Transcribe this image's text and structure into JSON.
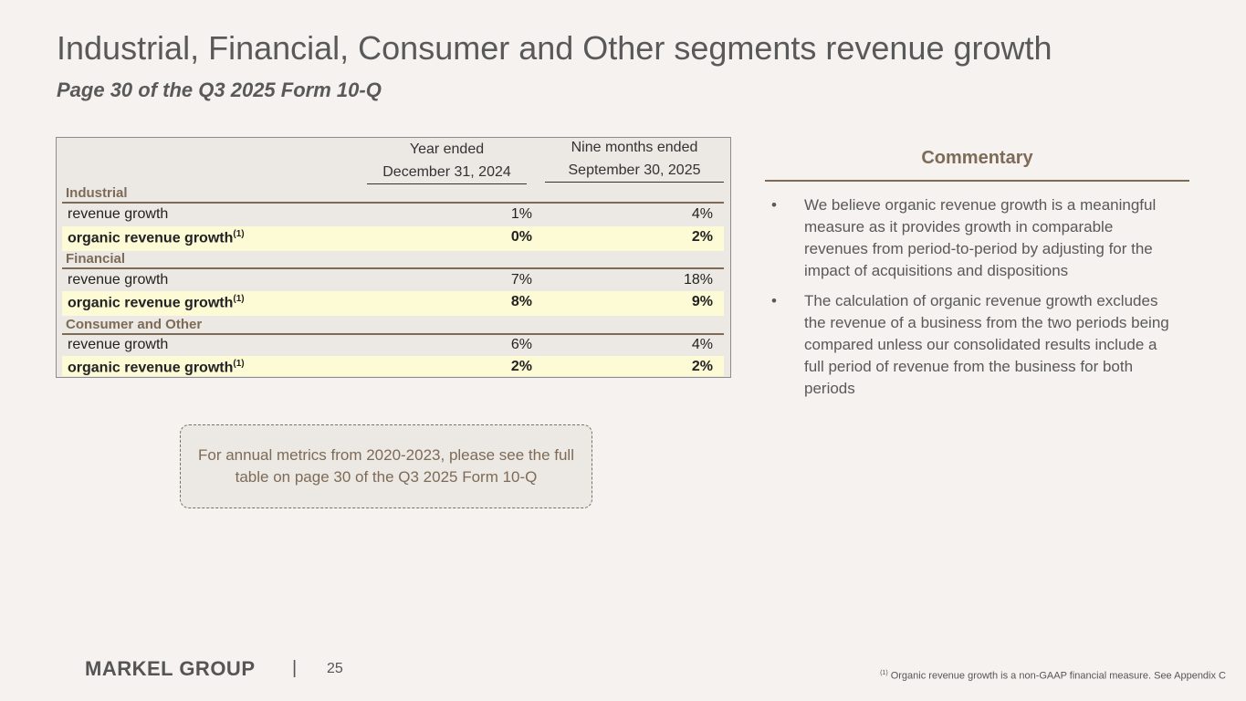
{
  "header": {
    "title": "Industrial, Financial, Consumer and Other segments revenue growth",
    "subtitle": "Page 30 of the Q3 2025 Form 10-Q"
  },
  "table": {
    "col1_line1": "Year ended",
    "col1_line2": "December 31, 2024",
    "col2_line1": "Nine months ended",
    "col2_line2": "September 30, 2025",
    "footnote_marker": "(1)",
    "segments": [
      {
        "name": "Industrial",
        "revenue_label": "revenue growth",
        "revenue_v1": "1%",
        "revenue_v2": "4%",
        "organic_label": "organic revenue growth",
        "organic_v1": "0%",
        "organic_v2": "2%"
      },
      {
        "name": "Financial",
        "revenue_label": "revenue growth",
        "revenue_v1": "7%",
        "revenue_v2": "18%",
        "organic_label": "organic revenue growth",
        "organic_v1": "8%",
        "organic_v2": "9%"
      },
      {
        "name": "Consumer and Other",
        "revenue_label": "revenue growth",
        "revenue_v1": "6%",
        "revenue_v2": "4%",
        "organic_label": "organic revenue growth",
        "organic_v1": "2%",
        "organic_v2": "2%"
      }
    ]
  },
  "commentary": {
    "title": "Commentary",
    "bullet_char": "•",
    "bullets": [
      "We believe organic revenue growth is a meaningful measure as it provides growth in comparable revenues from period-to-period by adjusting for the impact of acquisitions and dispositions",
      "The calculation of organic revenue growth excludes the revenue of a business from the two periods being compared unless our consolidated results include a full period of revenue from the business for both periods"
    ]
  },
  "note": "For annual metrics from 2020-2023, please see the full table on page 30 of the Q3 2025 Form 10-Q",
  "footer": {
    "logo": "MARKEL GROUP",
    "separator": "|",
    "page_number": "25",
    "footnote_marker": "(1)",
    "footnote": " Organic revenue growth is a non-GAAP financial measure. See Appendix C"
  }
}
